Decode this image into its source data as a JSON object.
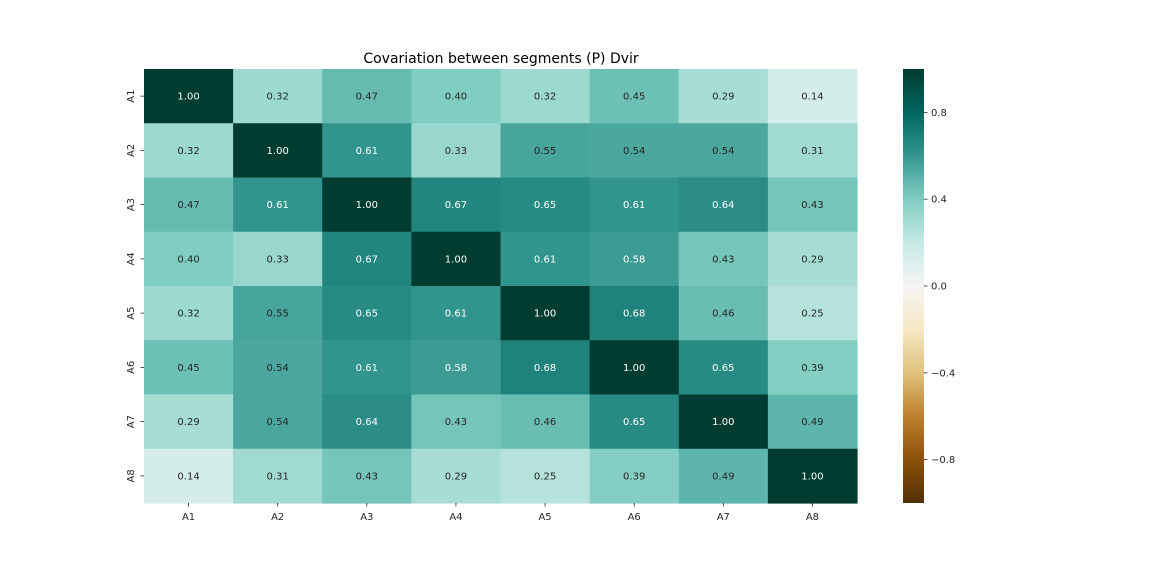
{
  "chart_data": {
    "type": "heatmap",
    "title": "Covariation between segments (P) Dvir",
    "x_categories": [
      "A1",
      "A2",
      "A3",
      "A4",
      "A5",
      "A6",
      "A7",
      "A8"
    ],
    "y_categories": [
      "A1",
      "A2",
      "A3",
      "A4",
      "A5",
      "A6",
      "A7",
      "A8"
    ],
    "values": [
      [
        1.0,
        0.32,
        0.47,
        0.4,
        0.32,
        0.45,
        0.29,
        0.14
      ],
      [
        0.32,
        1.0,
        0.61,
        0.33,
        0.55,
        0.54,
        0.54,
        0.31
      ],
      [
        0.47,
        0.61,
        1.0,
        0.67,
        0.65,
        0.61,
        0.64,
        0.43
      ],
      [
        0.4,
        0.33,
        0.67,
        1.0,
        0.61,
        0.58,
        0.43,
        0.29
      ],
      [
        0.32,
        0.55,
        0.65,
        0.61,
        1.0,
        0.68,
        0.46,
        0.25
      ],
      [
        0.45,
        0.54,
        0.61,
        0.58,
        0.68,
        1.0,
        0.65,
        0.39
      ],
      [
        0.29,
        0.54,
        0.64,
        0.43,
        0.46,
        0.65,
        1.0,
        0.49
      ],
      [
        0.14,
        0.31,
        0.43,
        0.29,
        0.25,
        0.39,
        0.49,
        1.0
      ]
    ],
    "value_format": "0.00",
    "vmin": -1.0,
    "vmax": 1.0,
    "colormap": "BrBG",
    "colormap_stops": [
      "#543005",
      "#8c510a",
      "#bf812d",
      "#dfc27d",
      "#f6e8c3",
      "#f5f5f5",
      "#c7eae5",
      "#80cdc1",
      "#35978f",
      "#01665e",
      "#003c30"
    ],
    "colorbar_ticks": [
      0.8,
      0.4,
      0.0,
      -0.4,
      -0.8
    ],
    "colorbar_tick_labels": [
      "0.8",
      "0.4",
      "0.0",
      "−0.4",
      "−0.8"
    ],
    "colorbar_position": "right",
    "grid": false
  }
}
